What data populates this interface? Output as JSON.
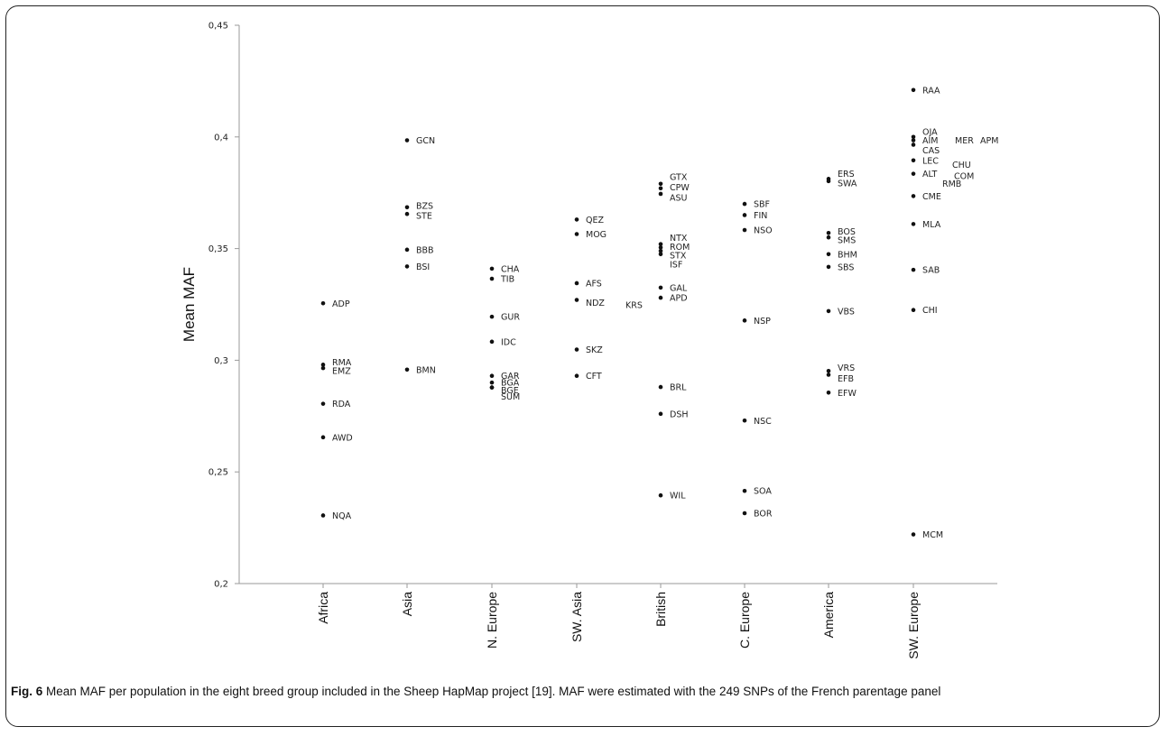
{
  "chart_data": {
    "type": "scatter",
    "title": "",
    "xlabel": "",
    "ylabel": "Mean MAF",
    "ylim": [
      0.2,
      0.45
    ],
    "yticks": [
      "0,2",
      "0,25",
      "0,3",
      "0,35",
      "0,4",
      "0,45"
    ],
    "grid": false,
    "categories": [
      "Africa",
      "Asia",
      "N. Europe",
      "SW. Asia",
      "British",
      "C. Europe",
      "America",
      "SW. Europe"
    ],
    "points": [
      {
        "group": "Africa",
        "label": "ADP",
        "y": 0.3255
      },
      {
        "group": "Africa",
        "label": "RMA",
        "y": 0.298
      },
      {
        "group": "Africa",
        "label": "EMZ",
        "y": 0.2965
      },
      {
        "group": "Africa",
        "label": "RDA",
        "y": 0.2805
      },
      {
        "group": "Africa",
        "label": "AWD",
        "y": 0.2655
      },
      {
        "group": "Africa",
        "label": "NQA",
        "y": 0.2305
      },
      {
        "group": "Asia",
        "label": "GCN",
        "y": 0.3985
      },
      {
        "group": "Asia",
        "label": "BZS",
        "y": 0.3685
      },
      {
        "group": "Asia",
        "label": "STE",
        "y": 0.3655
      },
      {
        "group": "Asia",
        "label": "BBB",
        "y": 0.3495
      },
      {
        "group": "Asia",
        "label": "BSI",
        "y": 0.342
      },
      {
        "group": "Asia",
        "label": "BMN",
        "y": 0.2958
      },
      {
        "group": "N. Europe",
        "label": "CHA",
        "y": 0.341
      },
      {
        "group": "N. Europe",
        "label": "TIB",
        "y": 0.3365
      },
      {
        "group": "N. Europe",
        "label": "GUR",
        "y": 0.3195
      },
      {
        "group": "N. Europe",
        "label": "IDC",
        "y": 0.3083
      },
      {
        "group": "N. Europe",
        "label": "GAR",
        "y": 0.293
      },
      {
        "group": "N. Europe",
        "label": "BGA",
        "y": 0.29
      },
      {
        "group": "N. Europe",
        "label": "BGE",
        "y": 0.2878
      },
      {
        "group": "N. Europe",
        "label": "SUM",
        "y": 0.2878
      },
      {
        "group": "SW. Asia",
        "label": "QEZ",
        "y": 0.363
      },
      {
        "group": "SW. Asia",
        "label": "MOG",
        "y": 0.3565
      },
      {
        "group": "SW. Asia",
        "label": "AFS",
        "y": 0.3345
      },
      {
        "group": "SW. Asia",
        "label": "NDZ",
        "y": 0.327
      },
      {
        "group": "SW. Asia",
        "label": "KRS",
        "y": 0.326
      },
      {
        "group": "SW. Asia",
        "label": "SKZ",
        "y": 0.3048
      },
      {
        "group": "SW. Asia",
        "label": "CFT",
        "y": 0.293
      },
      {
        "group": "British",
        "label": "GTX",
        "y": 0.379
      },
      {
        "group": "British",
        "label": "CPW",
        "y": 0.377
      },
      {
        "group": "British",
        "label": "ASU",
        "y": 0.3745
      },
      {
        "group": "British",
        "label": "NTX",
        "y": 0.352
      },
      {
        "group": "British",
        "label": "ROM",
        "y": 0.3505
      },
      {
        "group": "British",
        "label": "STX",
        "y": 0.349
      },
      {
        "group": "British",
        "label": "ISF",
        "y": 0.3475
      },
      {
        "group": "British",
        "label": "GAL",
        "y": 0.3325
      },
      {
        "group": "British",
        "label": "APD",
        "y": 0.328
      },
      {
        "group": "British",
        "label": "BRL",
        "y": 0.288
      },
      {
        "group": "British",
        "label": "DSH",
        "y": 0.276
      },
      {
        "group": "British",
        "label": "WIL",
        "y": 0.2395
      },
      {
        "group": "C. Europe",
        "label": "SBF",
        "y": 0.37
      },
      {
        "group": "C. Europe",
        "label": "FIN",
        "y": 0.365
      },
      {
        "group": "C. Europe",
        "label": "NSO",
        "y": 0.3583
      },
      {
        "group": "C. Europe",
        "label": "NSP",
        "y": 0.3178
      },
      {
        "group": "C. Europe",
        "label": "NSC",
        "y": 0.273
      },
      {
        "group": "C. Europe",
        "label": "SOA",
        "y": 0.2415
      },
      {
        "group": "C. Europe",
        "label": "BOR",
        "y": 0.2315
      },
      {
        "group": "America",
        "label": "ERS",
        "y": 0.3812
      },
      {
        "group": "America",
        "label": "SWA",
        "y": 0.3802
      },
      {
        "group": "America",
        "label": "BOS",
        "y": 0.357
      },
      {
        "group": "America",
        "label": "SMS",
        "y": 0.355
      },
      {
        "group": "America",
        "label": "BHM",
        "y": 0.3475
      },
      {
        "group": "America",
        "label": "SBS",
        "y": 0.3418
      },
      {
        "group": "America",
        "label": "VBS",
        "y": 0.322
      },
      {
        "group": "America",
        "label": "VRS",
        "y": 0.2952
      },
      {
        "group": "America",
        "label": "EFB",
        "y": 0.2935
      },
      {
        "group": "America",
        "label": "EFW",
        "y": 0.2855
      },
      {
        "group": "SW. Europe",
        "label": "RAA",
        "y": 0.421
      },
      {
        "group": "SW. Europe",
        "label": "OJA",
        "y": 0.4
      },
      {
        "group": "SW. Europe",
        "label": "AIM",
        "y": 0.3985
      },
      {
        "group": "SW. Europe",
        "label": "MER",
        "y": 0.3985
      },
      {
        "group": "SW. Europe",
        "label": "APM",
        "y": 0.3985
      },
      {
        "group": "SW. Europe",
        "label": "CAS",
        "y": 0.3965
      },
      {
        "group": "SW. Europe",
        "label": "LEC",
        "y": 0.3895
      },
      {
        "group": "SW. Europe",
        "label": "CHU",
        "y": 0.3885
      },
      {
        "group": "SW. Europe",
        "label": "ALT",
        "y": 0.3835
      },
      {
        "group": "SW. Europe",
        "label": "COM",
        "y": 0.3825
      },
      {
        "group": "SW. Europe",
        "label": "RMB",
        "y": 0.3815
      },
      {
        "group": "SW. Europe",
        "label": "CME",
        "y": 0.3735
      },
      {
        "group": "SW. Europe",
        "label": "MLA",
        "y": 0.361
      },
      {
        "group": "SW. Europe",
        "label": "SAB",
        "y": 0.3405
      },
      {
        "group": "SW. Europe",
        "label": "CHI",
        "y": 0.3225
      },
      {
        "group": "SW. Europe",
        "label": "MCM",
        "y": 0.222
      }
    ]
  },
  "caption": {
    "fig_label": "Fig. 6",
    "text": " Mean MAF per population in the eight breed group included in the Sheep HapMap project [19]. MAF were estimated with the 249 SNPs of the French parentage panel"
  }
}
